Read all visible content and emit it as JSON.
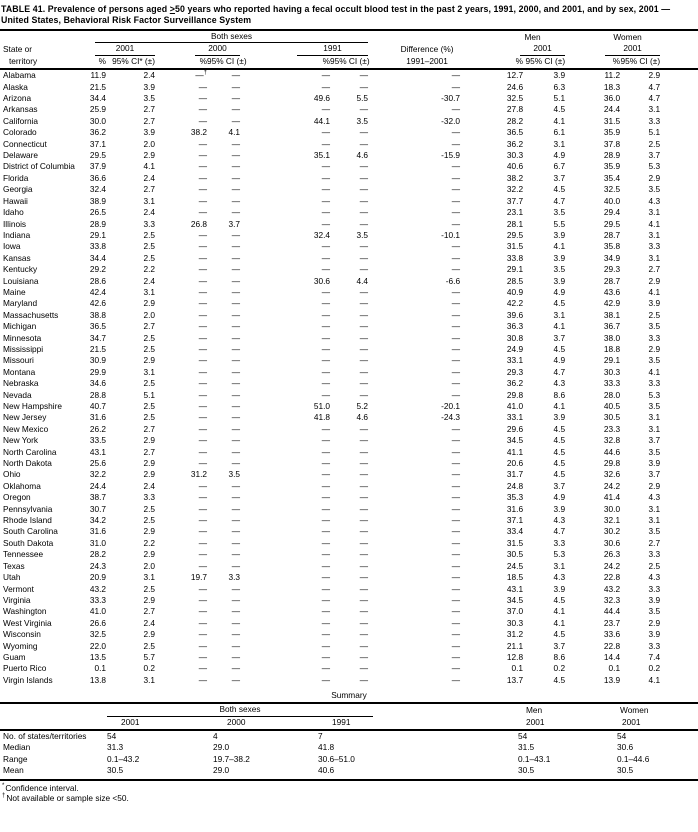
{
  "title": {
    "part1": "TABLE 41. Prevalence of persons aged ",
    "geq_symbol": ">",
    "part2": "50 years who reported having a fecal occult blood test in the past 2 years, 1991, 2000, and 2001, and by sex, 2001 — United States, Behavioral Risk Factor Surveillance System"
  },
  "header": {
    "state_line1": "State or",
    "state_line2": "territory",
    "group_both": "Both sexes",
    "group_men": "Men",
    "group_women": "Women",
    "year_2001": "2001",
    "year_2000": "2000",
    "year_1991": "1991",
    "pct": "%",
    "ci_starred": "95% CI* (±)",
    "ci": "95% CI (±)",
    "diff_line1": "Difference (%)",
    "diff_line2": "1991–2001"
  },
  "rows": [
    {
      "state": "Alabama",
      "v": [
        "11.9",
        "2.4",
        "—†",
        "—",
        "—",
        "—",
        "—",
        "12.7",
        "3.9",
        "11.2",
        "2.9"
      ]
    },
    {
      "state": "Alaska",
      "v": [
        "21.5",
        "3.9",
        "—",
        "—",
        "—",
        "—",
        "—",
        "24.6",
        "6.3",
        "18.3",
        "4.7"
      ]
    },
    {
      "state": "Arizona",
      "v": [
        "34.4",
        "3.5",
        "—",
        "—",
        "49.6",
        "5.5",
        "-30.7",
        "32.5",
        "5.1",
        "36.0",
        "4.7"
      ]
    },
    {
      "state": "Arkansas",
      "v": [
        "25.9",
        "2.7",
        "—",
        "—",
        "—",
        "—",
        "—",
        "27.8",
        "4.5",
        "24.4",
        "3.1"
      ]
    },
    {
      "state": "California",
      "v": [
        "30.0",
        "2.7",
        "—",
        "—",
        "44.1",
        "3.5",
        "-32.0",
        "28.2",
        "4.1",
        "31.5",
        "3.3"
      ]
    },
    {
      "state": "Colorado",
      "v": [
        "36.2",
        "3.9",
        "38.2",
        "4.1",
        "—",
        "—",
        "—",
        "36.5",
        "6.1",
        "35.9",
        "5.1"
      ]
    },
    {
      "state": "Connecticut",
      "v": [
        "37.1",
        "2.0",
        "—",
        "—",
        "—",
        "—",
        "—",
        "36.2",
        "3.1",
        "37.8",
        "2.5"
      ]
    },
    {
      "state": "Delaware",
      "v": [
        "29.5",
        "2.9",
        "—",
        "—",
        "35.1",
        "4.6",
        "-15.9",
        "30.3",
        "4.9",
        "28.9",
        "3.7"
      ]
    },
    {
      "state": "District of Columbia",
      "v": [
        "37.9",
        "4.1",
        "—",
        "—",
        "—",
        "—",
        "—",
        "40.6",
        "6.7",
        "35.9",
        "5.3"
      ]
    },
    {
      "state": "Florida",
      "v": [
        "36.6",
        "2.4",
        "—",
        "—",
        "—",
        "—",
        "—",
        "38.2",
        "3.7",
        "35.4",
        "2.9"
      ]
    },
    {
      "state": "Georgia",
      "v": [
        "32.4",
        "2.7",
        "—",
        "—",
        "—",
        "—",
        "—",
        "32.2",
        "4.5",
        "32.5",
        "3.5"
      ]
    },
    {
      "state": "Hawaii",
      "v": [
        "38.9",
        "3.1",
        "—",
        "—",
        "—",
        "—",
        "—",
        "37.7",
        "4.7",
        "40.0",
        "4.3"
      ]
    },
    {
      "state": "Idaho",
      "v": [
        "26.5",
        "2.4",
        "—",
        "—",
        "—",
        "—",
        "—",
        "23.1",
        "3.5",
        "29.4",
        "3.1"
      ]
    },
    {
      "state": "Illinois",
      "v": [
        "28.9",
        "3.3",
        "26.8",
        "3.7",
        "—",
        "—",
        "—",
        "28.1",
        "5.5",
        "29.5",
        "4.1"
      ]
    },
    {
      "state": "Indiana",
      "v": [
        "29.1",
        "2.5",
        "—",
        "—",
        "32.4",
        "3.5",
        "-10.1",
        "29.5",
        "3.9",
        "28.7",
        "3.1"
      ]
    },
    {
      "state": "Iowa",
      "v": [
        "33.8",
        "2.5",
        "—",
        "—",
        "—",
        "—",
        "—",
        "31.5",
        "4.1",
        "35.8",
        "3.3"
      ]
    },
    {
      "state": "Kansas",
      "v": [
        "34.4",
        "2.5",
        "—",
        "—",
        "—",
        "—",
        "—",
        "33.8",
        "3.9",
        "34.9",
        "3.1"
      ]
    },
    {
      "state": "Kentucky",
      "v": [
        "29.2",
        "2.2",
        "—",
        "—",
        "—",
        "—",
        "—",
        "29.1",
        "3.5",
        "29.3",
        "2.7"
      ]
    },
    {
      "state": "Louisiana",
      "v": [
        "28.6",
        "2.4",
        "—",
        "—",
        "30.6",
        "4.4",
        "-6.6",
        "28.5",
        "3.9",
        "28.7",
        "2.9"
      ]
    },
    {
      "state": "Maine",
      "v": [
        "42.4",
        "3.1",
        "—",
        "—",
        "—",
        "—",
        "—",
        "40.9",
        "4.9",
        "43.6",
        "4.1"
      ]
    },
    {
      "state": "Maryland",
      "v": [
        "42.6",
        "2.9",
        "—",
        "—",
        "—",
        "—",
        "—",
        "42.2",
        "4.5",
        "42.9",
        "3.9"
      ]
    },
    {
      "state": "Massachusetts",
      "v": [
        "38.8",
        "2.0",
        "—",
        "—",
        "—",
        "—",
        "—",
        "39.6",
        "3.1",
        "38.1",
        "2.5"
      ]
    },
    {
      "state": "Michigan",
      "v": [
        "36.5",
        "2.7",
        "—",
        "—",
        "—",
        "—",
        "—",
        "36.3",
        "4.1",
        "36.7",
        "3.5"
      ]
    },
    {
      "state": "Minnesota",
      "v": [
        "34.7",
        "2.5",
        "—",
        "—",
        "—",
        "—",
        "—",
        "30.8",
        "3.7",
        "38.0",
        "3.3"
      ]
    },
    {
      "state": "Mississippi",
      "v": [
        "21.5",
        "2.5",
        "—",
        "—",
        "—",
        "—",
        "—",
        "24.9",
        "4.5",
        "18.8",
        "2.9"
      ]
    },
    {
      "state": "Missouri",
      "v": [
        "30.9",
        "2.9",
        "—",
        "—",
        "—",
        "—",
        "—",
        "33.1",
        "4.9",
        "29.1",
        "3.5"
      ]
    },
    {
      "state": "Montana",
      "v": [
        "29.9",
        "3.1",
        "—",
        "—",
        "—",
        "—",
        "—",
        "29.3",
        "4.7",
        "30.3",
        "4.1"
      ]
    },
    {
      "state": "Nebraska",
      "v": [
        "34.6",
        "2.5",
        "—",
        "—",
        "—",
        "—",
        "—",
        "36.2",
        "4.3",
        "33.3",
        "3.3"
      ]
    },
    {
      "state": "Nevada",
      "v": [
        "28.8",
        "5.1",
        "—",
        "—",
        "—",
        "—",
        "—",
        "29.8",
        "8.6",
        "28.0",
        "5.3"
      ]
    },
    {
      "state": "New Hampshire",
      "v": [
        "40.7",
        "2.5",
        "—",
        "—",
        "51.0",
        "5.2",
        "-20.1",
        "41.0",
        "4.1",
        "40.5",
        "3.5"
      ]
    },
    {
      "state": "New Jersey",
      "v": [
        "31.6",
        "2.5",
        "—",
        "—",
        "41.8",
        "4.6",
        "-24.3",
        "33.1",
        "3.9",
        "30.5",
        "3.1"
      ]
    },
    {
      "state": "New Mexico",
      "v": [
        "26.2",
        "2.7",
        "—",
        "—",
        "—",
        "—",
        "—",
        "29.6",
        "4.5",
        "23.3",
        "3.1"
      ]
    },
    {
      "state": "New York",
      "v": [
        "33.5",
        "2.9",
        "—",
        "—",
        "—",
        "—",
        "—",
        "34.5",
        "4.5",
        "32.8",
        "3.7"
      ]
    },
    {
      "state": "North Carolina",
      "v": [
        "43.1",
        "2.7",
        "—",
        "—",
        "—",
        "—",
        "—",
        "41.1",
        "4.5",
        "44.6",
        "3.5"
      ]
    },
    {
      "state": "North Dakota",
      "v": [
        "25.6",
        "2.9",
        "—",
        "—",
        "—",
        "—",
        "—",
        "20.6",
        "4.5",
        "29.8",
        "3.9"
      ]
    },
    {
      "state": "Ohio",
      "v": [
        "32.2",
        "2.9",
        "31.2",
        "3.5",
        "—",
        "—",
        "—",
        "31.7",
        "4.5",
        "32.6",
        "3.7"
      ]
    },
    {
      "state": "Oklahoma",
      "v": [
        "24.4",
        "2.4",
        "—",
        "—",
        "—",
        "—",
        "—",
        "24.8",
        "3.7",
        "24.2",
        "2.9"
      ]
    },
    {
      "state": "Oregon",
      "v": [
        "38.7",
        "3.3",
        "—",
        "—",
        "—",
        "—",
        "—",
        "35.3",
        "4.9",
        "41.4",
        "4.3"
      ]
    },
    {
      "state": "Pennsylvania",
      "v": [
        "30.7",
        "2.5",
        "—",
        "—",
        "—",
        "—",
        "—",
        "31.6",
        "3.9",
        "30.0",
        "3.1"
      ]
    },
    {
      "state": "Rhode Island",
      "v": [
        "34.2",
        "2.5",
        "—",
        "—",
        "—",
        "—",
        "—",
        "37.1",
        "4.3",
        "32.1",
        "3.1"
      ]
    },
    {
      "state": "South Carolina",
      "v": [
        "31.6",
        "2.9",
        "—",
        "—",
        "—",
        "—",
        "—",
        "33.4",
        "4.7",
        "30.2",
        "3.5"
      ]
    },
    {
      "state": "South Dakota",
      "v": [
        "31.0",
        "2.2",
        "—",
        "—",
        "—",
        "—",
        "—",
        "31.5",
        "3.3",
        "30.6",
        "2.7"
      ]
    },
    {
      "state": "Tennessee",
      "v": [
        "28.2",
        "2.9",
        "—",
        "—",
        "—",
        "—",
        "—",
        "30.5",
        "5.3",
        "26.3",
        "3.3"
      ]
    },
    {
      "state": "Texas",
      "v": [
        "24.3",
        "2.0",
        "—",
        "—",
        "—",
        "—",
        "—",
        "24.5",
        "3.1",
        "24.2",
        "2.5"
      ]
    },
    {
      "state": "Utah",
      "v": [
        "20.9",
        "3.1",
        "19.7",
        "3.3",
        "—",
        "—",
        "—",
        "18.5",
        "4.3",
        "22.8",
        "4.3"
      ]
    },
    {
      "state": "Vermont",
      "v": [
        "43.2",
        "2.5",
        "—",
        "—",
        "—",
        "—",
        "—",
        "43.1",
        "3.9",
        "43.2",
        "3.3"
      ]
    },
    {
      "state": "Virginia",
      "v": [
        "33.3",
        "2.9",
        "—",
        "—",
        "—",
        "—",
        "—",
        "34.5",
        "4.5",
        "32.3",
        "3.9"
      ]
    },
    {
      "state": "Washington",
      "v": [
        "41.0",
        "2.7",
        "—",
        "—",
        "—",
        "—",
        "—",
        "37.0",
        "4.1",
        "44.4",
        "3.5"
      ]
    },
    {
      "state": "West Virginia",
      "v": [
        "26.6",
        "2.4",
        "—",
        "—",
        "—",
        "—",
        "—",
        "30.3",
        "4.1",
        "23.7",
        "2.9"
      ]
    },
    {
      "state": "Wisconsin",
      "v": [
        "32.5",
        "2.9",
        "—",
        "—",
        "—",
        "—",
        "—",
        "31.2",
        "4.5",
        "33.6",
        "3.9"
      ]
    },
    {
      "state": "Wyoming",
      "v": [
        "22.0",
        "2.5",
        "—",
        "—",
        "—",
        "—",
        "—",
        "21.1",
        "3.7",
        "22.8",
        "3.3"
      ]
    },
    {
      "state": "Guam",
      "v": [
        "13.5",
        "5.7",
        "—",
        "—",
        "—",
        "—",
        "—",
        "12.8",
        "8.6",
        "14.4",
        "7.4"
      ]
    },
    {
      "state": "Puerto Rico",
      "v": [
        "0.1",
        "0.2",
        "—",
        "—",
        "—",
        "—",
        "—",
        "0.1",
        "0.2",
        "0.1",
        "0.2"
      ]
    },
    {
      "state": "Virgin Islands",
      "v": [
        "13.8",
        "3.1",
        "—",
        "—",
        "—",
        "—",
        "—",
        "13.7",
        "4.5",
        "13.9",
        "4.1"
      ]
    }
  ],
  "summary": {
    "heading": "Summary",
    "rows": [
      {
        "label": "No. of states/territories",
        "v": [
          "54",
          "4",
          "7",
          "54",
          "54"
        ]
      },
      {
        "label": "Median",
        "v": [
          "31.3",
          "29.0",
          "41.8",
          "31.5",
          "30.6"
        ]
      },
      {
        "label": "Range",
        "v": [
          "0.1–43.2",
          "19.7–38.2",
          "30.6–51.0",
          "0.1–43.1",
          "0.1–44.6"
        ]
      },
      {
        "label": "Mean",
        "v": [
          "30.5",
          "29.0",
          "40.6",
          "30.5",
          "30.5"
        ]
      }
    ]
  },
  "footnotes": [
    {
      "marker": "*",
      "text": "Confidence interval."
    },
    {
      "marker": "†",
      "text": "Not available or sample size <50."
    }
  ]
}
